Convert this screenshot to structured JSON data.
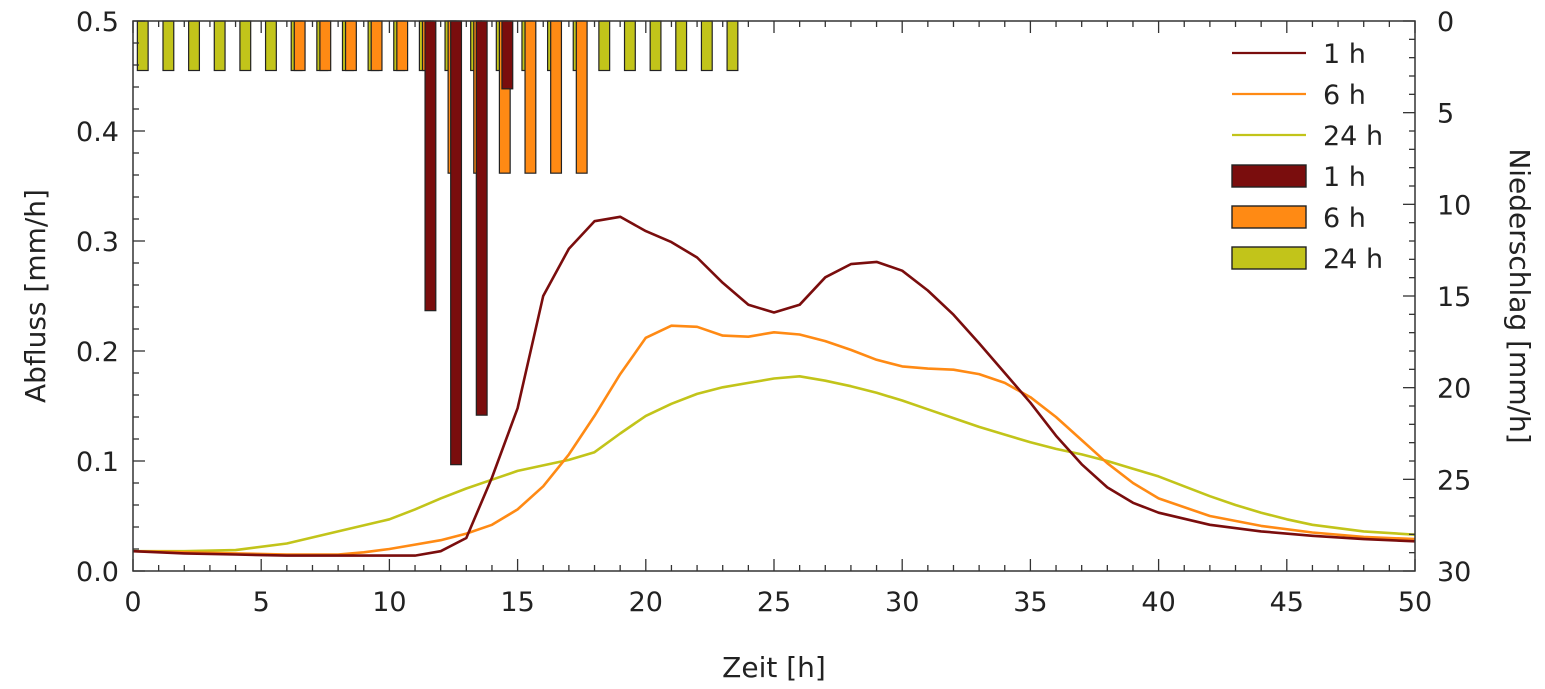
{
  "chart_data": {
    "type": "line",
    "xlabel": "Zeit [h]",
    "ylabel": "Abfluss [mm/h]",
    "y2label": "Niederschlag [mm/h]",
    "xlim": [
      0,
      50
    ],
    "ylim": [
      0,
      0.5
    ],
    "y2lim": [
      0,
      30
    ],
    "y2_inverted": true,
    "x_ticks": [
      0,
      5,
      10,
      15,
      20,
      25,
      30,
      35,
      40,
      45,
      50
    ],
    "y_ticks": [
      0.0,
      0.1,
      0.2,
      0.3,
      0.4,
      0.5
    ],
    "y_tick_labels": [
      "0.0",
      "0.1",
      "0.2",
      "0.3",
      "0.4",
      "0.5"
    ],
    "y2_ticks": [
      0,
      5,
      10,
      15,
      20,
      25,
      30
    ],
    "grid": false,
    "legend_position": "top-right",
    "colors": {
      "1 h": "#7a0d0d",
      "6 h": "#ff8a14",
      "24 h": "#c2c41a"
    },
    "series": [
      {
        "name": "1 h",
        "kind": "line",
        "x": [
          0,
          2,
          4,
          6,
          8,
          10,
          11,
          12,
          13,
          14,
          15,
          16,
          17,
          18,
          19,
          20,
          21,
          22,
          23,
          24,
          25,
          26,
          27,
          28,
          29,
          30,
          31,
          32,
          33,
          34,
          35,
          36,
          37,
          38,
          39,
          40,
          42,
          44,
          46,
          48,
          50
        ],
        "y": [
          0.018,
          0.016,
          0.015,
          0.014,
          0.014,
          0.014,
          0.014,
          0.018,
          0.03,
          0.085,
          0.148,
          0.25,
          0.293,
          0.318,
          0.322,
          0.309,
          0.299,
          0.285,
          0.262,
          0.242,
          0.235,
          0.242,
          0.267,
          0.279,
          0.281,
          0.273,
          0.255,
          0.233,
          0.207,
          0.18,
          0.153,
          0.123,
          0.097,
          0.076,
          0.062,
          0.053,
          0.042,
          0.036,
          0.032,
          0.029,
          0.027
        ]
      },
      {
        "name": "6 h",
        "kind": "line",
        "x": [
          0,
          2,
          4,
          6,
          8,
          9,
          10,
          11,
          12,
          13,
          14,
          15,
          16,
          17,
          18,
          19,
          20,
          21,
          22,
          23,
          24,
          25,
          26,
          27,
          28,
          29,
          30,
          31,
          32,
          33,
          34,
          35,
          36,
          37,
          38,
          39,
          40,
          42,
          44,
          46,
          48,
          50
        ],
        "y": [
          0.018,
          0.017,
          0.016,
          0.015,
          0.015,
          0.017,
          0.02,
          0.024,
          0.028,
          0.034,
          0.042,
          0.056,
          0.077,
          0.106,
          0.141,
          0.179,
          0.212,
          0.223,
          0.222,
          0.214,
          0.213,
          0.217,
          0.215,
          0.209,
          0.201,
          0.192,
          0.186,
          0.184,
          0.183,
          0.179,
          0.171,
          0.158,
          0.14,
          0.119,
          0.098,
          0.08,
          0.066,
          0.05,
          0.041,
          0.035,
          0.031,
          0.029
        ]
      },
      {
        "name": "24 h",
        "kind": "line",
        "x": [
          0,
          2,
          4,
          6,
          8,
          10,
          11,
          12,
          13,
          14,
          15,
          16,
          17,
          18,
          19,
          20,
          21,
          22,
          23,
          24,
          25,
          26,
          27,
          28,
          29,
          30,
          31,
          32,
          33,
          34,
          35,
          36,
          37,
          38,
          39,
          40,
          41,
          42,
          43,
          44,
          45,
          46,
          48,
          50
        ],
        "y": [
          0.018,
          0.018,
          0.019,
          0.025,
          0.036,
          0.047,
          0.056,
          0.066,
          0.075,
          0.083,
          0.091,
          0.096,
          0.101,
          0.108,
          0.125,
          0.141,
          0.152,
          0.161,
          0.167,
          0.171,
          0.175,
          0.177,
          0.173,
          0.168,
          0.162,
          0.155,
          0.147,
          0.139,
          0.131,
          0.124,
          0.117,
          0.111,
          0.106,
          0.1,
          0.093,
          0.086,
          0.077,
          0.068,
          0.06,
          0.053,
          0.047,
          0.042,
          0.036,
          0.033
        ]
      },
      {
        "name": "1 h",
        "kind": "bar",
        "axis": "y2",
        "x": [
          11.5,
          12.5,
          13.5,
          14.5
        ],
        "y": [
          15.8,
          24.2,
          21.5,
          3.7
        ]
      },
      {
        "name": "6 h",
        "kind": "bar",
        "axis": "y2",
        "x": [
          6.5,
          7.5,
          8.5,
          9.5,
          10.5,
          11.5,
          12.5,
          13.5,
          14.5,
          15.5,
          16.5,
          17.5
        ],
        "y": [
          2.7,
          2.7,
          2.7,
          2.7,
          2.7,
          2.7,
          8.3,
          8.3,
          8.3,
          8.3,
          8.3,
          8.3
        ]
      },
      {
        "name": "24 h",
        "kind": "bar",
        "axis": "y2",
        "x": [
          0.5,
          1.5,
          2.5,
          3.5,
          4.5,
          5.5,
          6.5,
          7.5,
          8.5,
          9.5,
          10.5,
          11.5,
          12.5,
          13.5,
          14.5,
          15.5,
          16.5,
          17.5,
          18.5,
          19.5,
          20.5,
          21.5,
          22.5,
          23.5
        ],
        "y": [
          2.7,
          2.7,
          2.7,
          2.7,
          2.7,
          2.7,
          2.7,
          2.7,
          2.7,
          2.7,
          2.7,
          2.7,
          2.7,
          2.7,
          2.7,
          2.7,
          2.7,
          2.7,
          2.7,
          2.7,
          2.7,
          2.7,
          2.7,
          2.7
        ]
      }
    ]
  }
}
